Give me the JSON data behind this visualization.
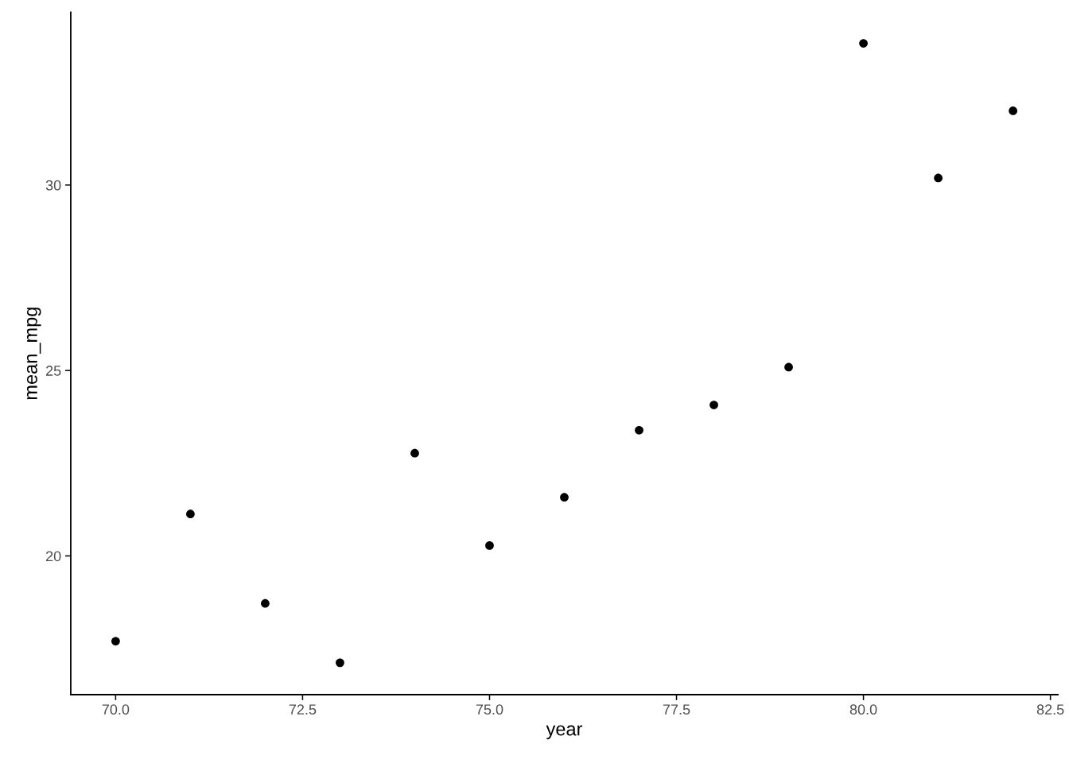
{
  "chart_data": {
    "type": "scatter",
    "xlabel": "year",
    "ylabel": "mean_mpg",
    "x": [
      70,
      71,
      72,
      73,
      74,
      75,
      76,
      77,
      78,
      79,
      80,
      81,
      82
    ],
    "values": [
      17.7,
      21.13,
      18.72,
      17.12,
      22.77,
      20.28,
      21.58,
      23.39,
      24.07,
      25.09,
      33.82,
      30.19,
      32.0
    ],
    "color": "#000000",
    "marker": "circle",
    "xlim": [
      69.4,
      82.6
    ],
    "ylim": [
      16.26,
      34.66
    ],
    "xticks": [
      {
        "value": 70,
        "label": "70.0"
      },
      {
        "value": 72.5,
        "label": "72.5"
      },
      {
        "value": 75,
        "label": "75.0"
      },
      {
        "value": 77.5,
        "label": "77.5"
      },
      {
        "value": 80,
        "label": "80.0"
      },
      {
        "value": 82.5,
        "label": "82.5"
      }
    ],
    "yticks": [
      20,
      25,
      30
    ],
    "grid": false
  }
}
